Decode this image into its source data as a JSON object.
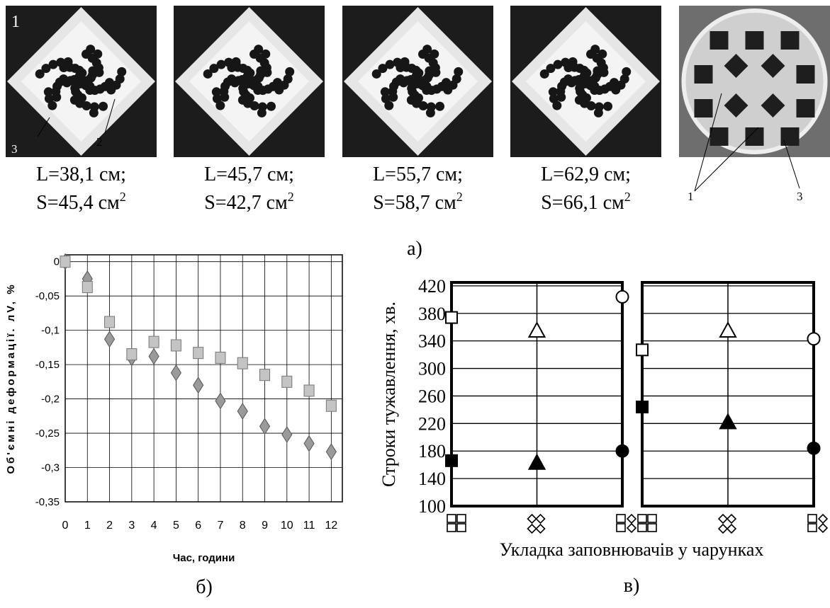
{
  "photos": [
    {
      "labels": [
        "1",
        "2",
        "3"
      ],
      "caption_l": "L=38,1 см;",
      "caption_s": "S=45,4 см",
      "sup": "2"
    },
    {
      "caption_l": "L=45,7 см;",
      "caption_s": "S=42,7 см",
      "sup": "2"
    },
    {
      "caption_l": "L=55,7 см;",
      "caption_s": "S=58,7 см",
      "sup": "2"
    },
    {
      "caption_l": "L=62,9 см;",
      "caption_s": "S=66,1 см",
      "sup": "2"
    },
    {
      "labels": [
        "1",
        "3"
      ]
    }
  ],
  "figure_labels": {
    "a": "а)",
    "b": "б)",
    "c": "в)"
  },
  "chart_data": [
    {
      "type": "scatter",
      "xlabel": "Час, години",
      "ylabel": "Об'ємні деформації. лV, %",
      "x": [
        0,
        1,
        2,
        3,
        4,
        5,
        6,
        7,
        8,
        9,
        10,
        11,
        12
      ],
      "xlim": [
        0,
        12.5
      ],
      "xticks": [
        0,
        1,
        2,
        3,
        4,
        5,
        6,
        7,
        8,
        9,
        10,
        11,
        12
      ],
      "ylim": [
        -0.35,
        0.01
      ],
      "yticks": [
        0,
        {
          "value": -0.05,
          "label": "-0,05"
        },
        {
          "value": -0.1,
          "label": "-0,1"
        },
        {
          "value": -0.15,
          "label": "-0,15"
        },
        {
          "value": -0.2,
          "label": "-0,2"
        },
        {
          "value": -0.25,
          "label": "-0,25"
        },
        {
          "value": -0.3,
          "label": "-0,3"
        },
        {
          "value": -0.35,
          "label": "-0,35"
        }
      ],
      "grid": true,
      "series": [
        {
          "marker": "diamond",
          "color": "#9a9a9a",
          "values": [
            0,
            -0.025,
            -0.113,
            -0.14,
            -0.138,
            -0.162,
            -0.18,
            -0.203,
            -0.218,
            -0.24,
            -0.252,
            -0.265,
            -0.277
          ]
        },
        {
          "marker": "square",
          "color": "#c4c4c4",
          "values": [
            0,
            -0.037,
            -0.088,
            -0.135,
            -0.117,
            -0.122,
            -0.133,
            -0.14,
            -0.148,
            -0.165,
            -0.175,
            -0.188,
            -0.21
          ]
        }
      ]
    },
    {
      "type": "category-scatter",
      "ylabel": "Строки тужавлення, хв.",
      "xlabel": "Укладка заповнювачів у чарунках",
      "categories": [
        null,
        null,
        null
      ],
      "markers": [
        "square",
        "triangle",
        "circle"
      ],
      "ylim": [
        100,
        425
      ],
      "yticks": [
        100,
        140,
        180,
        220,
        260,
        300,
        340,
        380,
        420
      ],
      "grid": true,
      "series": [
        {
          "color": "#ffffff",
          "values": [
            374,
            355,
            404
          ]
        },
        {
          "color": "#000000",
          "values": [
            166,
            163,
            180
          ]
        }
      ]
    },
    {
      "type": "category-scatter",
      "categories": [
        null,
        null,
        null
      ],
      "markers": [
        "square",
        "triangle",
        "circle"
      ],
      "ylim": [
        100,
        425
      ],
      "grid": true,
      "series": [
        {
          "color": "#ffffff",
          "values": [
            327,
            355,
            343
          ]
        },
        {
          "color": "#000000",
          "values": [
            244,
            222,
            184
          ]
        }
      ]
    }
  ]
}
